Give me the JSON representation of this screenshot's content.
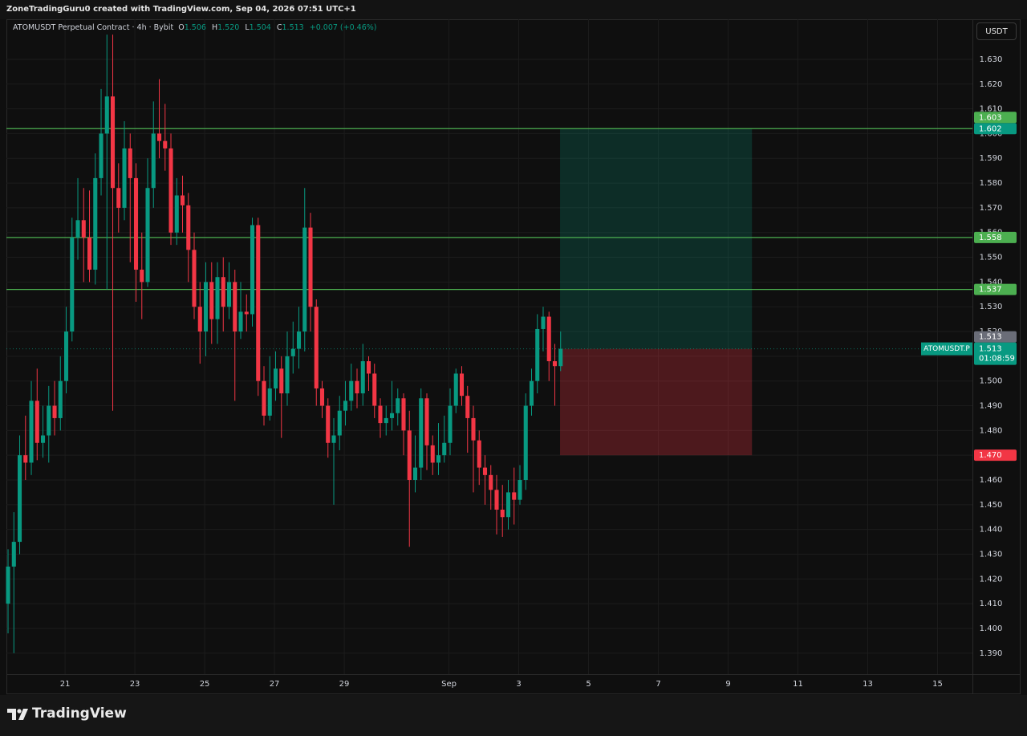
{
  "header": {
    "byline": "ZoneTradingGuru0 created with TradingView.com, Sep 04, 2026 07:51 UTC+1"
  },
  "legend": {
    "symbol": "ATOMUSDT Perpetual Contract · 4h · Bybit",
    "o_key": "O",
    "o": "1.506",
    "h_key": "H",
    "h": "1.520",
    "l_key": "L",
    "l": "1.504",
    "c_key": "C",
    "c": "1.513",
    "change": "+0.007 (+0.46%)"
  },
  "currency_button": "USDT",
  "brand": "TradingView",
  "chart_data": {
    "type": "candlestick",
    "up_color": "#089981",
    "down_color": "#f23645",
    "open": [
      1.41,
      1.425,
      1.435,
      1.47,
      1.467,
      1.492,
      1.475,
      1.478,
      1.49,
      1.485,
      1.5,
      1.52,
      1.558,
      1.565,
      1.558,
      1.545,
      1.582,
      1.6,
      1.615,
      1.578,
      1.57,
      1.594,
      1.582,
      1.545,
      1.54,
      1.578,
      1.6,
      1.597,
      1.594,
      1.56,
      1.575,
      1.571,
      1.553,
      1.53,
      1.52,
      1.54,
      1.525,
      1.542,
      1.53,
      1.54,
      1.52,
      1.528,
      1.527,
      1.563,
      1.5,
      1.486,
      1.497,
      1.505,
      1.495,
      1.51,
      1.513,
      1.52,
      1.562,
      1.53,
      1.497,
      1.49,
      1.475,
      1.478,
      1.488,
      1.492,
      1.5,
      1.495,
      1.508,
      1.503,
      1.49,
      1.483,
      1.485,
      1.487,
      1.493,
      1.48,
      1.46,
      1.465,
      1.493,
      1.474,
      1.467,
      1.47,
      1.475,
      1.49,
      1.503,
      1.494,
      1.485,
      1.476,
      1.465,
      1.462,
      1.456,
      1.448,
      1.445,
      1.455,
      1.452,
      1.46,
      1.49,
      1.5,
      1.521,
      1.526,
      1.508,
      1.506
    ],
    "high": [
      1.432,
      1.447,
      1.478,
      1.486,
      1.5,
      1.505,
      1.49,
      1.498,
      1.5,
      1.51,
      1.53,
      1.566,
      1.582,
      1.578,
      1.577,
      1.592,
      1.618,
      1.64,
      1.64,
      1.588,
      1.605,
      1.6,
      1.588,
      1.56,
      1.59,
      1.613,
      1.622,
      1.612,
      1.6,
      1.582,
      1.583,
      1.576,
      1.56,
      1.54,
      1.548,
      1.548,
      1.548,
      1.55,
      1.548,
      1.545,
      1.54,
      1.535,
      1.566,
      1.566,
      1.506,
      1.51,
      1.512,
      1.51,
      1.52,
      1.524,
      1.53,
      1.578,
      1.568,
      1.533,
      1.5,
      1.493,
      1.485,
      1.494,
      1.5,
      1.507,
      1.505,
      1.515,
      1.51,
      1.507,
      1.493,
      1.49,
      1.5,
      1.497,
      1.495,
      1.488,
      1.478,
      1.497,
      1.495,
      1.478,
      1.483,
      1.486,
      1.497,
      1.505,
      1.506,
      1.498,
      1.49,
      1.48,
      1.47,
      1.466,
      1.462,
      1.458,
      1.46,
      1.465,
      1.466,
      1.495,
      1.505,
      1.527,
      1.53,
      1.528,
      1.515,
      1.52
    ],
    "low": [
      1.398,
      1.39,
      1.43,
      1.46,
      1.462,
      1.468,
      1.469,
      1.467,
      1.478,
      1.48,
      1.495,
      1.516,
      1.549,
      1.54,
      1.54,
      1.539,
      1.575,
      1.537,
      1.488,
      1.56,
      1.565,
      1.548,
      1.532,
      1.525,
      1.538,
      1.57,
      1.59,
      1.585,
      1.555,
      1.555,
      1.56,
      1.54,
      1.525,
      1.507,
      1.51,
      1.515,
      1.515,
      1.52,
      1.525,
      1.492,
      1.517,
      1.52,
      1.522,
      1.494,
      1.482,
      1.484,
      1.492,
      1.477,
      1.49,
      1.503,
      1.505,
      1.512,
      1.52,
      1.49,
      1.485,
      1.469,
      1.45,
      1.472,
      1.482,
      1.488,
      1.489,
      1.49,
      1.496,
      1.485,
      1.477,
      1.478,
      1.48,
      1.482,
      1.47,
      1.433,
      1.455,
      1.46,
      1.464,
      1.462,
      1.462,
      1.467,
      1.47,
      1.487,
      1.49,
      1.471,
      1.455,
      1.458,
      1.45,
      1.448,
      1.438,
      1.437,
      1.44,
      1.442,
      1.45,
      1.456,
      1.486,
      1.495,
      1.512,
      1.5,
      1.49,
      1.504
    ],
    "close": [
      1.425,
      1.435,
      1.47,
      1.467,
      1.492,
      1.475,
      1.478,
      1.49,
      1.485,
      1.5,
      1.52,
      1.558,
      1.565,
      1.558,
      1.545,
      1.582,
      1.6,
      1.615,
      1.578,
      1.57,
      1.594,
      1.582,
      1.545,
      1.54,
      1.578,
      1.6,
      1.597,
      1.594,
      1.56,
      1.575,
      1.571,
      1.553,
      1.53,
      1.52,
      1.54,
      1.525,
      1.542,
      1.53,
      1.54,
      1.52,
      1.528,
      1.527,
      1.563,
      1.5,
      1.486,
      1.497,
      1.505,
      1.495,
      1.51,
      1.513,
      1.52,
      1.562,
      1.53,
      1.497,
      1.49,
      1.475,
      1.478,
      1.488,
      1.492,
      1.5,
      1.495,
      1.508,
      1.503,
      1.49,
      1.483,
      1.485,
      1.487,
      1.493,
      1.48,
      1.46,
      1.465,
      1.493,
      1.474,
      1.467,
      1.47,
      1.475,
      1.49,
      1.503,
      1.494,
      1.485,
      1.476,
      1.465,
      1.462,
      1.456,
      1.448,
      1.445,
      1.455,
      1.452,
      1.46,
      1.49,
      1.5,
      1.521,
      1.526,
      1.508,
      1.506,
      1.513
    ],
    "xlim": [
      -0.28,
      165.8
    ],
    "xticks": [
      {
        "value": 9.8,
        "label": "21"
      },
      {
        "value": 21.8,
        "label": "23"
      },
      {
        "value": 33.8,
        "label": "25"
      },
      {
        "value": 45.8,
        "label": "27"
      },
      {
        "value": 57.8,
        "label": "29"
      },
      {
        "value": 75.8,
        "label": "Sep"
      },
      {
        "value": 87.8,
        "label": "3"
      },
      {
        "value": 99.8,
        "label": "5"
      },
      {
        "value": 111.8,
        "label": "7"
      },
      {
        "value": 123.8,
        "label": "9"
      },
      {
        "value": 135.8,
        "label": "11"
      },
      {
        "value": 147.8,
        "label": "13"
      },
      {
        "value": 159.8,
        "label": "15"
      }
    ],
    "ylim": [
      1.3815,
      1.6462
    ],
    "yticks": [
      {
        "value": 1.39,
        "label": "1.390"
      },
      {
        "value": 1.4,
        "label": "1.400"
      },
      {
        "value": 1.41,
        "label": "1.410"
      },
      {
        "value": 1.42,
        "label": "1.420"
      },
      {
        "value": 1.43,
        "label": "1.430"
      },
      {
        "value": 1.44,
        "label": "1.440"
      },
      {
        "value": 1.45,
        "label": "1.450"
      },
      {
        "value": 1.46,
        "label": "1.460"
      },
      {
        "value": 1.47,
        "label": "1.470"
      },
      {
        "value": 1.48,
        "label": "1.480"
      },
      {
        "value": 1.49,
        "label": "1.490"
      },
      {
        "value": 1.5,
        "label": "1.500"
      },
      {
        "value": 1.51,
        "label": "1.510"
      },
      {
        "value": 1.52,
        "label": "1.520"
      },
      {
        "value": 1.53,
        "label": "1.530"
      },
      {
        "value": 1.54,
        "label": "1.540"
      },
      {
        "value": 1.55,
        "label": "1.550"
      },
      {
        "value": 1.56,
        "label": "1.560"
      },
      {
        "value": 1.57,
        "label": "1.570"
      },
      {
        "value": 1.58,
        "label": "1.580"
      },
      {
        "value": 1.59,
        "label": "1.590"
      },
      {
        "value": 1.6,
        "label": "1.600"
      },
      {
        "value": 1.61,
        "label": "1.610"
      },
      {
        "value": 1.62,
        "label": "1.620"
      },
      {
        "value": 1.63,
        "label": "1.630"
      }
    ],
    "grid": true,
    "levels": [
      1.602,
      1.558,
      1.537
    ],
    "level_color": "#4caf50",
    "position": {
      "target": 1.602,
      "entry": 1.513,
      "stop": 1.47,
      "start": 94.9,
      "end": 127.9
    },
    "last_price": {
      "value": 1.513,
      "symbol": "ATOMUSDT.P",
      "countdown": "01:08:59",
      "color": "#089981"
    },
    "price_tags": [
      {
        "value": 1.602,
        "color": "#089981"
      },
      {
        "value": 1.603,
        "color": "#4caf50"
      },
      {
        "value": 1.558,
        "color": "#4caf50"
      },
      {
        "value": 1.537,
        "color": "#4caf50"
      },
      {
        "value": 1.513,
        "color": "#6a6d78"
      },
      {
        "value": 1.47,
        "label": "1.470",
        "color": "#f23645"
      }
    ]
  }
}
